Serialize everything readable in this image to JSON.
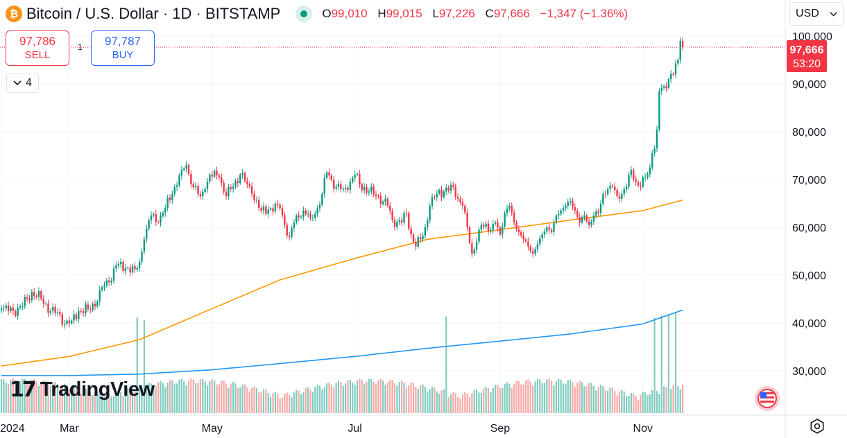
{
  "header": {
    "title": "Bitcoin / U.S. Dollar · 1D · BITSTAMP",
    "coin_glyph": "₿",
    "ohlc": {
      "o_key": "O",
      "o_val": "99,010",
      "h_key": "H",
      "h_val": "99,015",
      "l_key": "L",
      "l_val": "97,226",
      "c_key": "C",
      "c_val": "97,666",
      "change": "−1,347 (−1.36%)"
    }
  },
  "trade": {
    "sell_price": "97,786",
    "sell_label": "SELL",
    "buy_price": "97,787",
    "buy_label": "BUY",
    "spread": "1"
  },
  "indicators_toggle": {
    "label": "4"
  },
  "currency": {
    "selected": "USD"
  },
  "price_label": {
    "price": "97,666",
    "countdown": "53:20"
  },
  "logo": {
    "mark": "17",
    "text": "TradingView"
  },
  "icons": {
    "coin": "bitcoin-icon",
    "status": "market-status-icon",
    "chevron": "chevron-down-icon",
    "flag": "us-flag-icon",
    "settings": "settings-gear-icon"
  },
  "colors": {
    "up": "#089981",
    "down": "#f23645",
    "ma_fast": "#ff9800",
    "ma_slow": "#2196f3",
    "buy": "#2962ff"
  },
  "chart_data": {
    "type": "candlestick",
    "y_ticks": [
      "100,000",
      "90,000",
      "80,000",
      "70,000",
      "60,000",
      "50,000",
      "40,000",
      "30,000"
    ],
    "y_tick_values": [
      100000,
      90000,
      80000,
      70000,
      60000,
      50000,
      40000,
      30000
    ],
    "x_ticks": [
      "2024",
      "Mar",
      "May",
      "Jul",
      "Sep",
      "Nov"
    ],
    "x_tick_days": [
      31,
      60,
      121,
      182,
      244,
      305
    ],
    "ylim": [
      22000,
      102000
    ],
    "x_day_range": [
      31,
      325
    ],
    "grid": true,
    "last_close": 97666,
    "price_anchors": [
      [
        31,
        43000
      ],
      [
        36,
        42500
      ],
      [
        40,
        43500
      ],
      [
        44,
        46500
      ],
      [
        48,
        45000
      ],
      [
        52,
        42500
      ],
      [
        56,
        41800
      ],
      [
        58,
        39800
      ],
      [
        61,
        40500
      ],
      [
        64,
        42500
      ],
      [
        68,
        42900
      ],
      [
        72,
        44500
      ],
      [
        74,
        47500
      ],
      [
        77,
        48500
      ],
      [
        80,
        52000
      ],
      [
        84,
        51500
      ],
      [
        88,
        51200
      ],
      [
        90,
        52800
      ],
      [
        92,
        57500
      ],
      [
        95,
        62500
      ],
      [
        98,
        61000
      ],
      [
        100,
        63000
      ],
      [
        104,
        67000
      ],
      [
        108,
        72000
      ],
      [
        110,
        73000
      ],
      [
        112,
        69000
      ],
      [
        116,
        66500
      ],
      [
        118,
        68000
      ],
      [
        120,
        71000
      ],
      [
        124,
        70500
      ],
      [
        127,
        66500
      ],
      [
        130,
        68500
      ],
      [
        133,
        71000
      ],
      [
        136,
        69000
      ],
      [
        138,
        67000
      ],
      [
        142,
        63500
      ],
      [
        146,
        64000
      ],
      [
        150,
        64000
      ],
      [
        152,
        60500
      ],
      [
        154,
        58000
      ],
      [
        157,
        62500
      ],
      [
        160,
        63500
      ],
      [
        163,
        62000
      ],
      [
        166,
        64000
      ],
      [
        168,
        67000
      ],
      [
        170,
        71500
      ],
      [
        174,
        68500
      ],
      [
        177,
        68000
      ],
      [
        180,
        69500
      ],
      [
        182,
        71000
      ],
      [
        184,
        69000
      ],
      [
        188,
        67500
      ],
      [
        192,
        66500
      ],
      [
        196,
        64500
      ],
      [
        198,
        61500
      ],
      [
        202,
        61000
      ],
      [
        204,
        63000
      ],
      [
        206,
        58500
      ],
      [
        208,
        56000
      ],
      [
        210,
        57500
      ],
      [
        212,
        60000
      ],
      [
        214,
        64500
      ],
      [
        217,
        67000
      ],
      [
        220,
        67500
      ],
      [
        224,
        68500
      ],
      [
        226,
        66000
      ],
      [
        228,
        64500
      ],
      [
        230,
        60000
      ],
      [
        232,
        54500
      ],
      [
        234,
        57000
      ],
      [
        236,
        60500
      ],
      [
        240,
        59500
      ],
      [
        242,
        61000
      ],
      [
        244,
        58500
      ],
      [
        246,
        63000
      ],
      [
        248,
        64500
      ],
      [
        250,
        61000
      ],
      [
        252,
        59000
      ],
      [
        254,
        57500
      ],
      [
        256,
        56000
      ],
      [
        258,
        54500
      ],
      [
        260,
        56500
      ],
      [
        262,
        58500
      ],
      [
        264,
        60000
      ],
      [
        266,
        59000
      ],
      [
        268,
        62500
      ],
      [
        270,
        63500
      ],
      [
        272,
        64500
      ],
      [
        274,
        65500
      ],
      [
        276,
        63500
      ],
      [
        278,
        61000
      ],
      [
        280,
        62500
      ],
      [
        282,
        60500
      ],
      [
        284,
        62500
      ],
      [
        286,
        63000
      ],
      [
        288,
        67000
      ],
      [
        290,
        68000
      ],
      [
        292,
        68500
      ],
      [
        294,
        66500
      ],
      [
        296,
        67000
      ],
      [
        298,
        68500
      ],
      [
        300,
        72000
      ],
      [
        302,
        69500
      ],
      [
        304,
        68500
      ],
      [
        306,
        70500
      ],
      [
        308,
        72500
      ],
      [
        309,
        75500
      ],
      [
        310,
        76500
      ],
      [
        311,
        80500
      ],
      [
        312,
        88500
      ],
      [
        314,
        89500
      ],
      [
        316,
        91000
      ],
      [
        318,
        92000
      ],
      [
        320,
        95000
      ],
      [
        321,
        99000
      ],
      [
        322,
        97666
      ]
    ],
    "moving_averages": [
      {
        "color": "#ff9800",
        "points": [
          [
            31,
            31000
          ],
          [
            60,
            33000
          ],
          [
            90,
            36500
          ],
          [
            121,
            43000
          ],
          [
            150,
            49000
          ],
          [
            182,
            53500
          ],
          [
            213,
            57500
          ],
          [
            244,
            59500
          ],
          [
            274,
            61500
          ],
          [
            305,
            63500
          ],
          [
            322,
            65700
          ]
        ]
      },
      {
        "color": "#2196f3",
        "points": [
          [
            31,
            29000
          ],
          [
            60,
            29000
          ],
          [
            90,
            29300
          ],
          [
            121,
            30200
          ],
          [
            150,
            31500
          ],
          [
            182,
            33000
          ],
          [
            213,
            34700
          ],
          [
            244,
            36200
          ],
          [
            274,
            37700
          ],
          [
            305,
            39800
          ],
          [
            322,
            42700
          ]
        ]
      }
    ],
    "volume_spike_days": [
      89,
      92,
      221,
      310,
      313,
      316,
      319
    ]
  }
}
